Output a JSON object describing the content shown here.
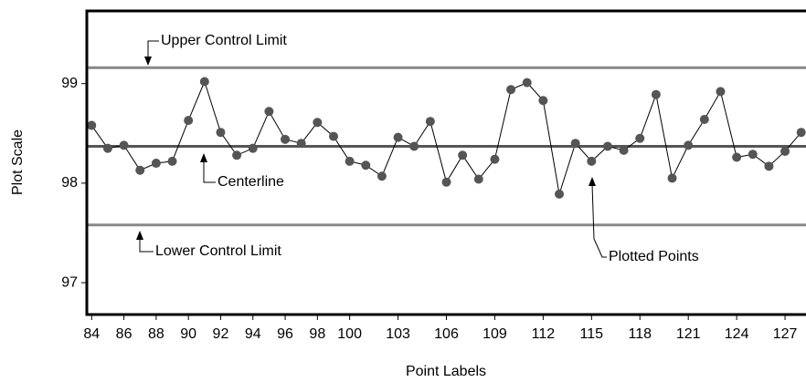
{
  "chart_data": {
    "type": "line",
    "x_label": "Point Labels",
    "y_label": "Plot Scale",
    "x": [
      84,
      85,
      86,
      87,
      88,
      89,
      90,
      91,
      92,
      93,
      94,
      95,
      96,
      97,
      98,
      99,
      100,
      101,
      102,
      103,
      104,
      105,
      106,
      107,
      108,
      109,
      110,
      111,
      112,
      113,
      114,
      115,
      116,
      117,
      118,
      119,
      120,
      121,
      122,
      123,
      124,
      125,
      126,
      127,
      128
    ],
    "series": [
      {
        "color": "#555555",
        "values": [
          98.58,
          98.35,
          98.38,
          98.13,
          98.2,
          98.22,
          98.63,
          99.02,
          98.51,
          98.28,
          98.35,
          98.72,
          98.44,
          98.4,
          98.61,
          98.47,
          98.22,
          98.18,
          98.07,
          98.46,
          98.37,
          98.62,
          98.01,
          98.28,
          98.04,
          98.24,
          98.94,
          99.01,
          98.83,
          97.89,
          98.4,
          98.22,
          98.37,
          98.33,
          98.45,
          98.89,
          98.05,
          98.38,
          98.64,
          98.92,
          98.26,
          98.29,
          98.17,
          98.32,
          98.51
        ]
      }
    ],
    "control_limits": [
      {
        "label": "Upper Control Limit",
        "value": 99.16,
        "color": "#888888"
      },
      {
        "label": "Centerline",
        "value": 98.37,
        "color": "#555555"
      },
      {
        "label": "Lower Control Limit",
        "value": 97.58,
        "color": "#888888"
      }
    ],
    "point_annotation": "Plotted Points",
    "xlim": [
      83.7,
      128.3
    ],
    "ylim": [
      96.68,
      99.73
    ],
    "xticks": [
      84,
      86,
      88,
      90,
      92,
      94,
      96,
      98,
      100,
      103,
      106,
      109,
      112,
      115,
      118,
      121,
      124,
      127
    ],
    "yticks": [
      97,
      98,
      99
    ]
  }
}
